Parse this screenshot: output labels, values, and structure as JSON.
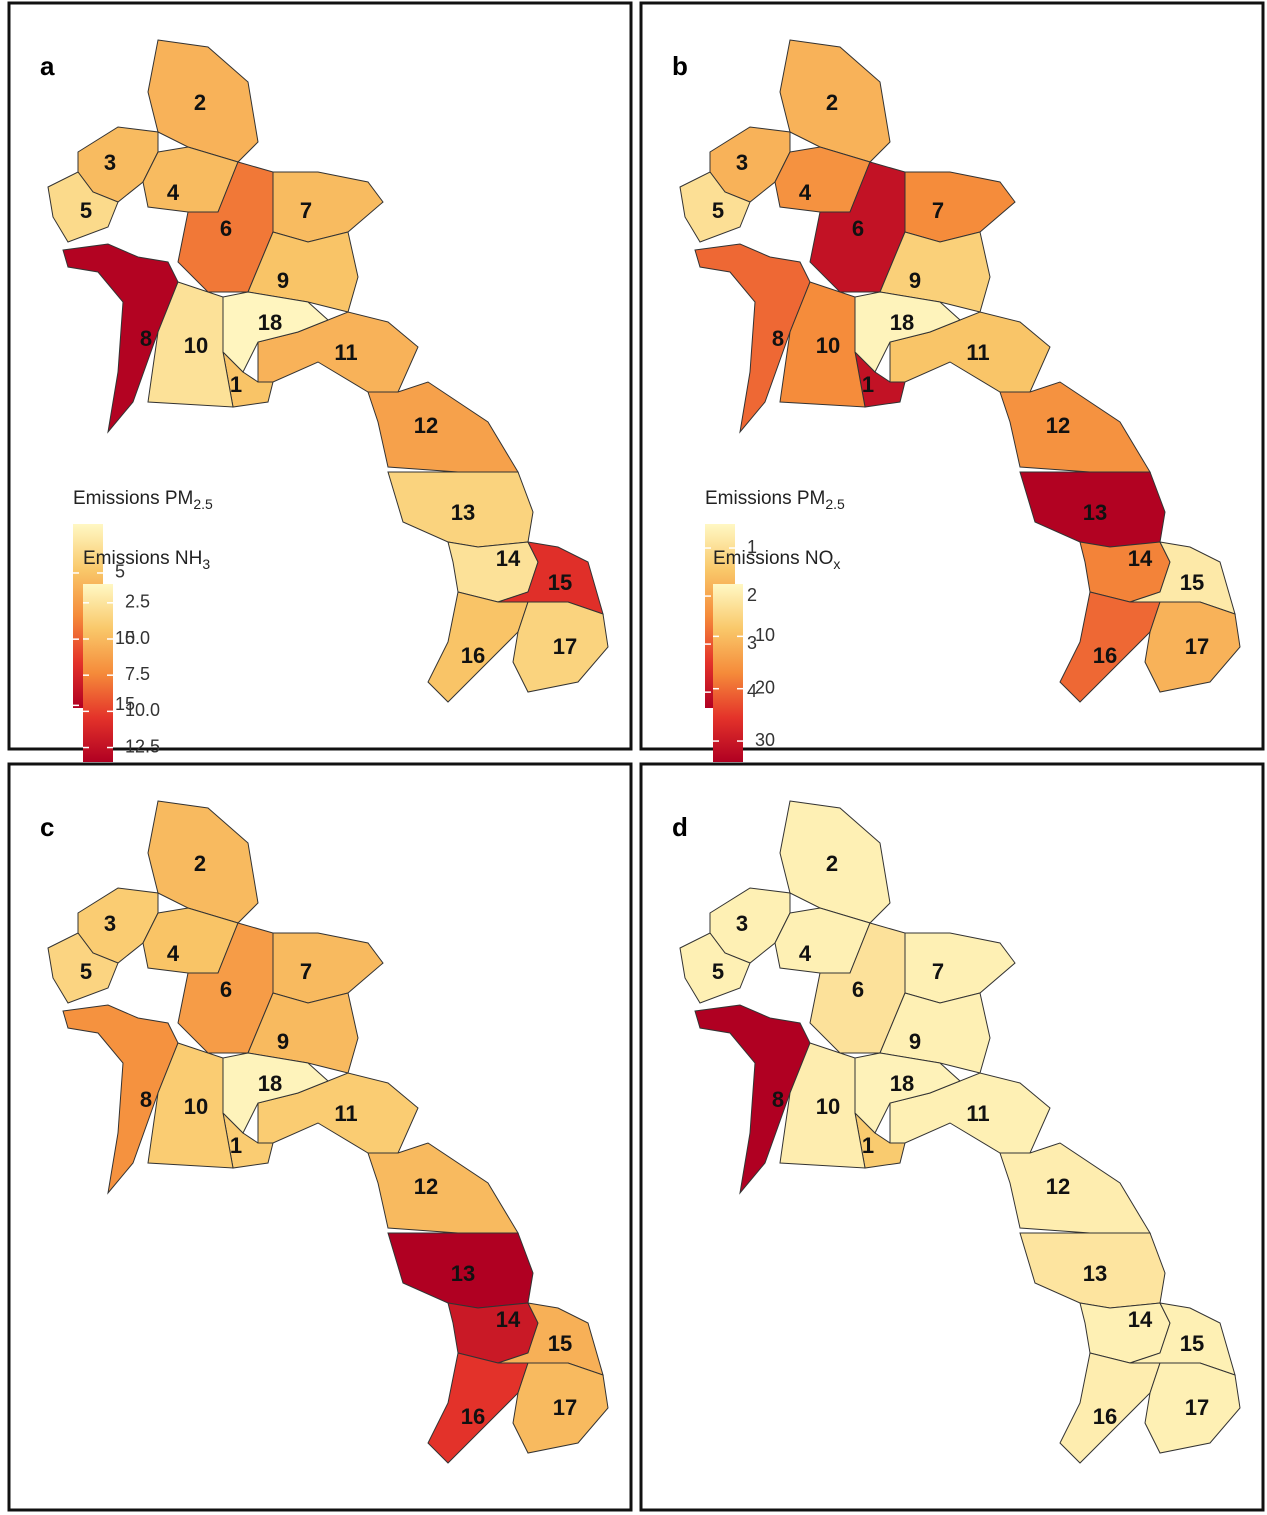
{
  "colors": [
    "#fff8c4",
    "#f9c86a",
    "#f58b3a",
    "#e4332a",
    "#b00022"
  ],
  "panels": [
    {
      "letter": "a",
      "legend": {
        "title": "Emissions PM",
        "title_sub": "2.5",
        "lim": [
          1.3,
          15.2
        ],
        "ticks": [
          5,
          10,
          15
        ]
      },
      "regions": [
        {
          "label": "1",
          "value": 5
        },
        {
          "label": "2",
          "value": 6
        },
        {
          "label": "3",
          "value": 5.5
        },
        {
          "label": "4",
          "value": 5.5
        },
        {
          "label": "5",
          "value": 3.5
        },
        {
          "label": "6",
          "value": 9
        },
        {
          "label": "7",
          "value": 5.5
        },
        {
          "label": "8",
          "value": 15
        },
        {
          "label": "9",
          "value": 5
        },
        {
          "label": "10",
          "value": 3
        },
        {
          "label": "11",
          "value": 6
        },
        {
          "label": "12",
          "value": 7
        },
        {
          "label": "13",
          "value": 4
        },
        {
          "label": "14",
          "value": 3
        },
        {
          "label": "15",
          "value": 12
        },
        {
          "label": "16",
          "value": 5
        },
        {
          "label": "17",
          "value": 4
        },
        {
          "label": "18",
          "value": 1.5
        }
      ]
    },
    {
      "letter": "b",
      "legend": {
        "title": "Emissions PM",
        "title_sub": "2.5",
        "lim": [
          0.5,
          4.33
        ],
        "ticks": [
          1,
          2,
          3,
          4
        ]
      },
      "regions": [
        {
          "label": "1",
          "value": 4
        },
        {
          "label": "2",
          "value": 1.8
        },
        {
          "label": "3",
          "value": 1.8
        },
        {
          "label": "4",
          "value": 2.3
        },
        {
          "label": "5",
          "value": 1
        },
        {
          "label": "6",
          "value": 4
        },
        {
          "label": "7",
          "value": 2.4
        },
        {
          "label": "8",
          "value": 2.8
        },
        {
          "label": "9",
          "value": 1.3
        },
        {
          "label": "10",
          "value": 2.4
        },
        {
          "label": "11",
          "value": 1.5
        },
        {
          "label": "12",
          "value": 2.3
        },
        {
          "label": "13",
          "value": 4.3
        },
        {
          "label": "14",
          "value": 2.5
        },
        {
          "label": "15",
          "value": 0.8
        },
        {
          "label": "16",
          "value": 2.8
        },
        {
          "label": "17",
          "value": 1.8
        },
        {
          "label": "18",
          "value": 0.6
        }
      ]
    },
    {
      "letter": "c",
      "legend": {
        "title": "Emissions NH",
        "title_sub": "3",
        "lim": [
          1.2,
          13.5
        ],
        "ticks": [
          2.5,
          {
            "value": 5,
            "label": "5.0"
          },
          7.5,
          {
            "value": 10,
            "label": "10.0"
          },
          12.5
        ]
      },
      "regions": [
        {
          "label": "1",
          "value": 4
        },
        {
          "label": "2",
          "value": 5
        },
        {
          "label": "3",
          "value": 4
        },
        {
          "label": "4",
          "value": 4.5
        },
        {
          "label": "5",
          "value": 3.5
        },
        {
          "label": "6",
          "value": 6.5
        },
        {
          "label": "7",
          "value": 5
        },
        {
          "label": "8",
          "value": 7
        },
        {
          "label": "9",
          "value": 5
        },
        {
          "label": "10",
          "value": 4
        },
        {
          "label": "11",
          "value": 4
        },
        {
          "label": "12",
          "value": 5
        },
        {
          "label": "13",
          "value": 13.5
        },
        {
          "label": "14",
          "value": 12
        },
        {
          "label": "15",
          "value": 5.5
        },
        {
          "label": "16",
          "value": 10.5
        },
        {
          "label": "17",
          "value": 5
        },
        {
          "label": "18",
          "value": 1.5
        }
      ]
    },
    {
      "letter": "d",
      "legend": {
        "title": "Emissions NO",
        "title_sub": "x",
        "lim": [
          0,
          34
        ],
        "ticks": [
          10,
          20,
          30
        ]
      },
      "regions": [
        {
          "label": "1",
          "value": 8
        },
        {
          "label": "2",
          "value": 1.5
        },
        {
          "label": "3",
          "value": 1.5
        },
        {
          "label": "4",
          "value": 1.5
        },
        {
          "label": "5",
          "value": 1.5
        },
        {
          "label": "6",
          "value": 4
        },
        {
          "label": "7",
          "value": 1.5
        },
        {
          "label": "8",
          "value": 34
        },
        {
          "label": "9",
          "value": 1.5
        },
        {
          "label": "10",
          "value": 2
        },
        {
          "label": "11",
          "value": 1.5
        },
        {
          "label": "12",
          "value": 2
        },
        {
          "label": "13",
          "value": 3.5
        },
        {
          "label": "14",
          "value": 1.5
        },
        {
          "label": "15",
          "value": 1.5
        },
        {
          "label": "16",
          "value": 2
        },
        {
          "label": "17",
          "value": 1.5
        },
        {
          "label": "18",
          "value": 1
        }
      ]
    }
  ]
}
